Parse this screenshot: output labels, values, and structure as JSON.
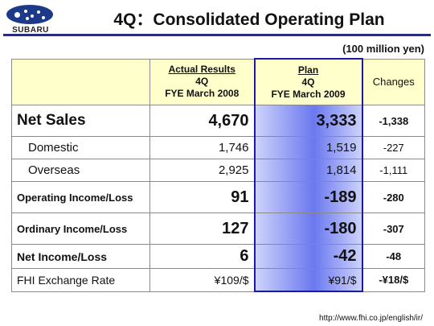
{
  "header": {
    "logo_text": "SUBARU",
    "title": "4Q：Consolidated Operating Plan",
    "unit": "(100 million yen)"
  },
  "table": {
    "columns": {
      "actual": {
        "line1": "Actual Results",
        "line2": "4Q",
        "line3": "FYE March 2008"
      },
      "plan": {
        "line1": "Plan",
        "line2": "4Q",
        "line3": "FYE March 2009"
      },
      "changes": "Changes"
    },
    "rows": [
      {
        "label": "Net Sales",
        "actual": "4,670",
        "plan": "3,333",
        "change": "-1,338"
      },
      {
        "label": "Domestic",
        "actual": "1,746",
        "plan": "1,519",
        "change": "-227"
      },
      {
        "label": "Overseas",
        "actual": "2,925",
        "plan": "1,814",
        "change": "-1,111"
      },
      {
        "label": "Operating Income/Loss",
        "actual": "91",
        "plan": "-189",
        "change": "-280"
      },
      {
        "label": "Ordinary Income/Loss",
        "actual": "127",
        "plan": "-180",
        "change": "-307"
      },
      {
        "label": "Net Income/Loss",
        "actual": "6",
        "plan": "-42",
        "change": "-48"
      },
      {
        "label": "FHI Exchange Rate",
        "actual": "¥109/$",
        "plan": "¥91/$",
        "change": "-¥18/$"
      }
    ]
  },
  "footer": {
    "url": "http://www.fhi.co.jp/english/ir/"
  },
  "colors": {
    "negative": "#e02020",
    "header_bg": "#ffffcc",
    "plan_border": "#1a1aa8",
    "plan_fill": "#6b78ef"
  }
}
